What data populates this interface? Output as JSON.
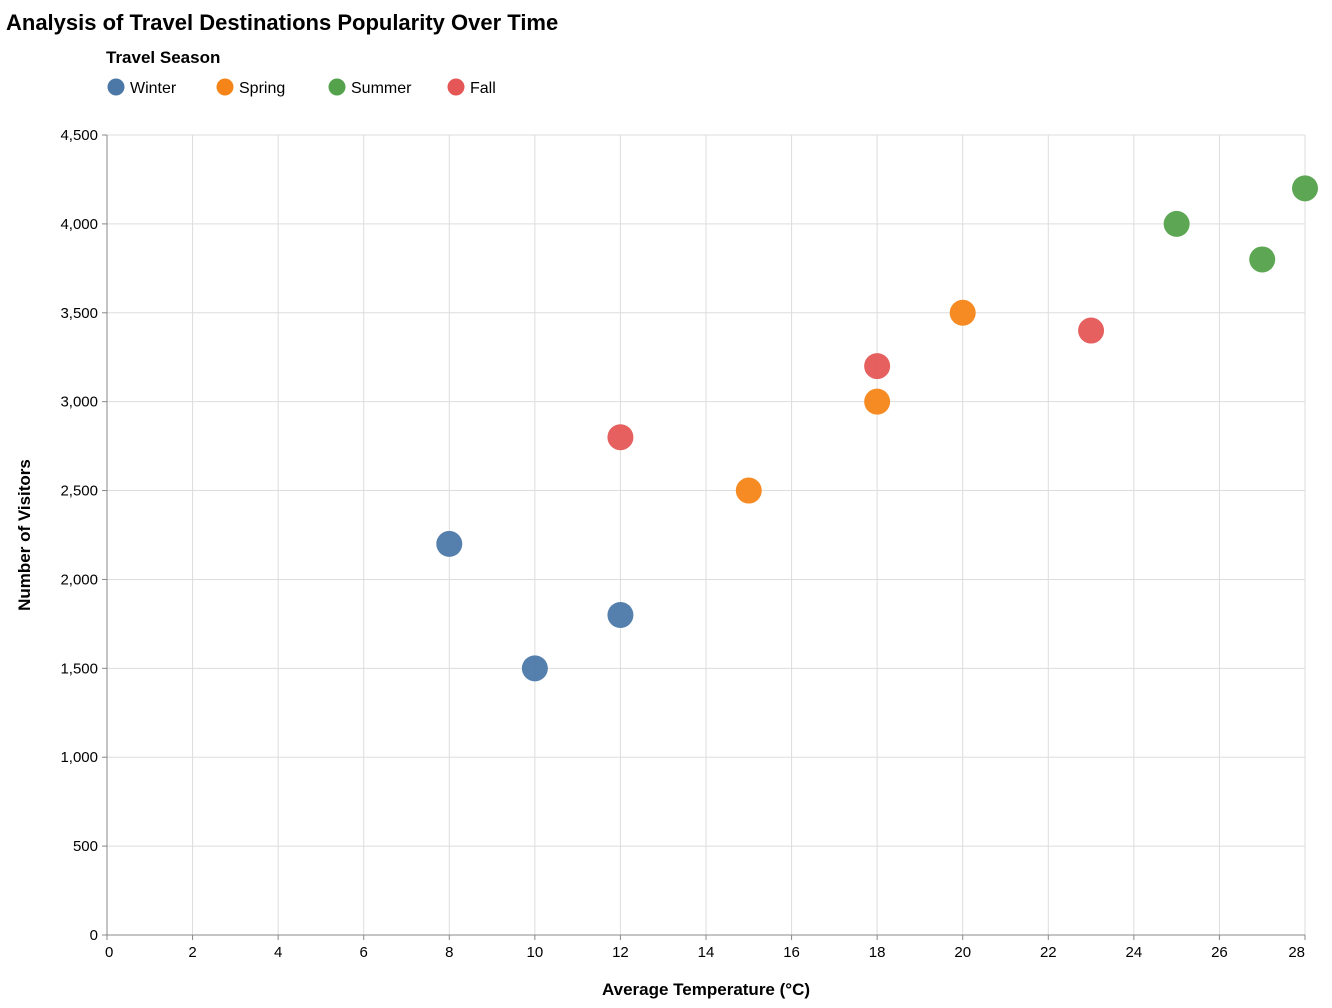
{
  "chart_data": {
    "type": "scatter",
    "title": "Analysis of Travel Destinations Popularity Over Time",
    "xlabel": "Average Temperature (°C)",
    "ylabel": "Number of Visitors",
    "xlim": [
      0,
      28
    ],
    "ylim": [
      0,
      4500
    ],
    "x_ticks": [
      "0",
      "2",
      "4",
      "6",
      "8",
      "10",
      "12",
      "14",
      "16",
      "18",
      "20",
      "22",
      "24",
      "26",
      "28"
    ],
    "y_ticks": [
      "0",
      "500",
      "1,000",
      "1,500",
      "2,000",
      "2,500",
      "3,000",
      "3,500",
      "4,000",
      "4,500"
    ],
    "x_tick_values": [
      0,
      2,
      4,
      6,
      8,
      10,
      12,
      14,
      16,
      18,
      20,
      22,
      24,
      26,
      28
    ],
    "y_tick_values": [
      0,
      500,
      1000,
      1500,
      2000,
      2500,
      3000,
      3500,
      4000,
      4500
    ],
    "grid": true,
    "legend": {
      "title": "Travel Season",
      "placement": "top-left",
      "entries": [
        {
          "name": "Winter",
          "color": "#4c78a8"
        },
        {
          "name": "Spring",
          "color": "#f58518"
        },
        {
          "name": "Summer",
          "color": "#54a24b"
        },
        {
          "name": "Fall",
          "color": "#e45756"
        }
      ]
    },
    "series": [
      {
        "name": "Winter",
        "color": "#4c78a8",
        "points": [
          {
            "x": 8,
            "y": 2200
          },
          {
            "x": 10,
            "y": 1500
          },
          {
            "x": 12,
            "y": 1800
          }
        ]
      },
      {
        "name": "Spring",
        "color": "#f58518",
        "points": [
          {
            "x": 15,
            "y": 2500
          },
          {
            "x": 18,
            "y": 3000
          },
          {
            "x": 20,
            "y": 3500
          }
        ]
      },
      {
        "name": "Summer",
        "color": "#54a24b",
        "points": [
          {
            "x": 25,
            "y": 4000
          },
          {
            "x": 27,
            "y": 3800
          },
          {
            "x": 28,
            "y": 4200
          }
        ]
      },
      {
        "name": "Fall",
        "color": "#e45756",
        "points": [
          {
            "x": 12,
            "y": 2800
          },
          {
            "x": 18,
            "y": 3200
          },
          {
            "x": 23,
            "y": 3400
          }
        ]
      }
    ]
  }
}
